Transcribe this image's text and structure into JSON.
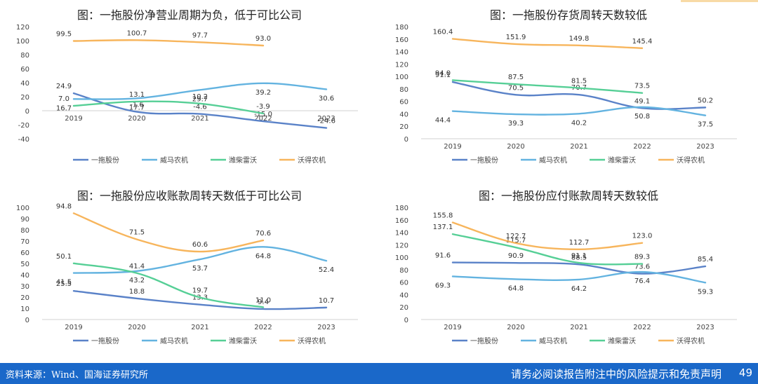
{
  "colors": {
    "一拖股份": "#5a82c8",
    "威马农机": "#63b3e0",
    "潍柴雷沃": "#56cf96",
    "沃得农机": "#f7b55c"
  },
  "charts": [
    {
      "id": "p0",
      "title": "图：一拖股份净营业周期为负，低于可比公司",
      "ylim": [
        -40,
        120
      ],
      "ystep": 20,
      "categories": [
        "2019",
        "2020",
        "2021",
        "2022",
        "2023"
      ],
      "series": [
        {
          "name": "一拖股份",
          "values": [
            24.9,
            -1.6,
            -4.6,
            -15.0,
            -24.6
          ]
        },
        {
          "name": "威马农机",
          "values": [
            16.7,
            17.7,
            29.7,
            39.2,
            30.6
          ]
        },
        {
          "name": "潍柴雷沃",
          "values": [
            7.0,
            13.1,
            10.2,
            -3.9,
            null
          ]
        },
        {
          "name": "沃得农机",
          "values": [
            99.5,
            100.7,
            97.7,
            93.0,
            null
          ]
        }
      ]
    },
    {
      "id": "p1",
      "title": "图：一拖股份存货周转天数较低",
      "ylim": [
        0,
        180
      ],
      "ystep": 20,
      "categories": [
        "2019",
        "2020",
        "2021",
        "2022",
        "2023"
      ],
      "series": [
        {
          "name": "一拖股份",
          "values": [
            91.1,
            70.5,
            70.7,
            49.1,
            50.2
          ]
        },
        {
          "name": "威马农机",
          "values": [
            44.4,
            39.3,
            40.2,
            50.8,
            37.5
          ]
        },
        {
          "name": "潍柴雷沃",
          "values": [
            94.0,
            87.5,
            81.5,
            73.5,
            null
          ]
        },
        {
          "name": "沃得农机",
          "values": [
            160.4,
            151.9,
            149.8,
            145.4,
            null
          ]
        }
      ]
    },
    {
      "id": "p2",
      "title": "图：一拖股份应收账款周转天数低于可比公司",
      "ylim": [
        0,
        100
      ],
      "ystep": 10,
      "categories": [
        "2019",
        "2020",
        "2021",
        "2022",
        "2023"
      ],
      "series": [
        {
          "name": "一拖股份",
          "values": [
            25.5,
            18.8,
            13.3,
            9.4,
            10.7
          ]
        },
        {
          "name": "威马农机",
          "values": [
            41.5,
            43.2,
            53.7,
            64.8,
            52.4
          ]
        },
        {
          "name": "潍柴雷沃",
          "values": [
            50.1,
            41.4,
            19.7,
            11.0,
            null
          ]
        },
        {
          "name": "沃得农机",
          "values": [
            94.8,
            71.5,
            60.6,
            70.6,
            null
          ]
        }
      ]
    },
    {
      "id": "p3",
      "title": "图：一拖股份应付账款周转天数较低",
      "ylim": [
        0,
        180
      ],
      "ystep": 20,
      "categories": [
        "2019",
        "2020",
        "2021",
        "2022",
        "2023"
      ],
      "series": [
        {
          "name": "一拖股份",
          "values": [
            91.6,
            90.9,
            88.5,
            73.6,
            85.4
          ]
        },
        {
          "name": "威马农机",
          "values": [
            69.3,
            64.8,
            64.2,
            76.4,
            59.3
          ]
        },
        {
          "name": "潍柴雷沃",
          "values": [
            137.1,
            115.7,
            91.1,
            89.3,
            null
          ]
        },
        {
          "name": "沃得农机",
          "values": [
            155.8,
            122.7,
            112.7,
            123.0,
            null
          ]
        }
      ]
    }
  ],
  "footer": {
    "source": "资料来源：Wind、国海证券研究所",
    "disclaimer": "请务必阅读报告附注中的风险提示和免责声明",
    "page": "49"
  }
}
